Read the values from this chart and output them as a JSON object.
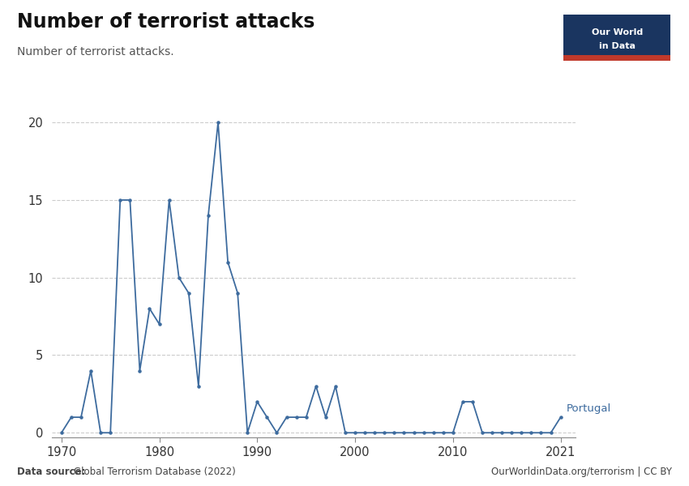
{
  "title": "Number of terrorist attacks",
  "subtitle": "Number of terrorist attacks.",
  "country_label": "Portugal",
  "line_color": "#3d6b9e",
  "background_color": "#ffffff",
  "years": [
    1970,
    1971,
    1972,
    1973,
    1974,
    1975,
    1976,
    1977,
    1978,
    1979,
    1980,
    1981,
    1982,
    1983,
    1984,
    1985,
    1986,
    1987,
    1988,
    1989,
    1990,
    1991,
    1992,
    1993,
    1994,
    1995,
    1996,
    1997,
    1998,
    1999,
    2000,
    2001,
    2002,
    2003,
    2004,
    2005,
    2006,
    2007,
    2008,
    2009,
    2010,
    2011,
    2012,
    2013,
    2014,
    2015,
    2016,
    2017,
    2018,
    2019,
    2020,
    2021
  ],
  "values": [
    0,
    1,
    1,
    4,
    0,
    0,
    15,
    15,
    4,
    8,
    7,
    15,
    10,
    9,
    3,
    14,
    20,
    11,
    9,
    0,
    2,
    1,
    0,
    1,
    1,
    1,
    3,
    1,
    3,
    0,
    0,
    0,
    0,
    0,
    0,
    0,
    0,
    0,
    0,
    0,
    0,
    2,
    2,
    0,
    0,
    0,
    0,
    0,
    0,
    0,
    0,
    1
  ],
  "yticks": [
    0,
    5,
    10,
    15,
    20
  ],
  "xticks": [
    1970,
    1980,
    1990,
    2000,
    2010,
    2021
  ],
  "ylim": [
    -0.3,
    21
  ],
  "xlim": [
    1969.0,
    2022.5
  ],
  "logo_bg": "#1a3560",
  "logo_red": "#c0392b",
  "logo_text": "Our World\nin Data",
  "data_source_bold": "Data source: ",
  "data_source_normal": "Global Terrorism Database (2022)",
  "website": "OurWorldinData.org/terrorism | CC BY"
}
